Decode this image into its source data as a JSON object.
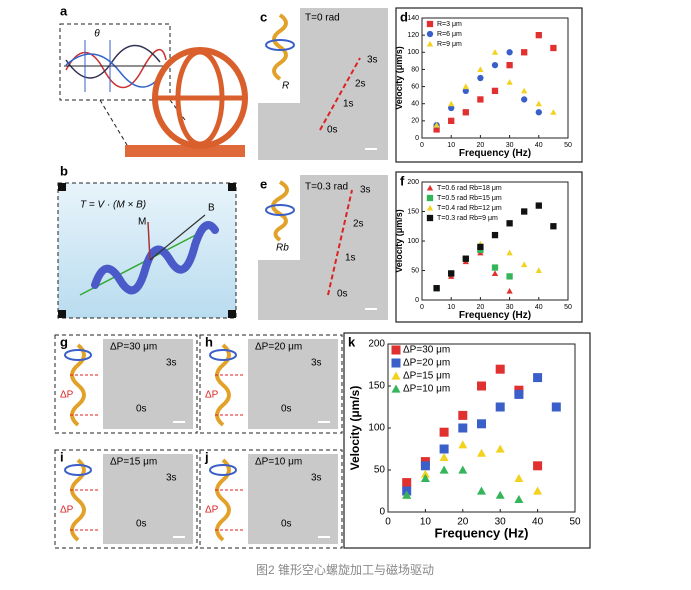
{
  "figure": {
    "panels": [
      {
        "label": "a",
        "texts": [
          "θ"
        ]
      },
      {
        "label": "b",
        "texts": [
          "T = V · (M × B)",
          "M",
          "B"
        ]
      },
      {
        "label": "c",
        "texts": [
          "T=0 rad",
          "3s",
          "2s",
          "1s",
          "0s",
          "R"
        ]
      },
      {
        "label": "d",
        "texts": []
      },
      {
        "label": "e",
        "texts": [
          "T=0.3 rad",
          "3s",
          "2s",
          "1s",
          "0s",
          "Rb"
        ]
      },
      {
        "label": "f",
        "texts": []
      },
      {
        "label": "g",
        "texts": [
          "ΔP=30 μm",
          "3s",
          "0s",
          "ΔP"
        ]
      },
      {
        "label": "h",
        "texts": [
          "ΔP=20 μm",
          "3s",
          "0s",
          "ΔP"
        ]
      },
      {
        "label": "i",
        "texts": [
          "ΔP=15 μm",
          "3s",
          "0s",
          "ΔP"
        ]
      },
      {
        "label": "j",
        "texts": [
          "ΔP=10 μm",
          "3s",
          "0s",
          "ΔP"
        ]
      },
      {
        "label": "k",
        "texts": []
      }
    ],
    "caption": "图2 锥形空心螺旋加工与磁场驱动"
  },
  "chart_data": [
    {
      "type": "scatter",
      "x_label": "Frequency (Hz)",
      "y_label": "Velocity (μm/s)",
      "xlim": [
        0,
        50
      ],
      "ylim": [
        0,
        140
      ],
      "xticks": [
        0,
        10,
        20,
        30,
        40,
        50
      ],
      "yticks": [
        0,
        20,
        40,
        60,
        80,
        100,
        120,
        140
      ],
      "series": [
        {
          "name": "R=3 μm",
          "color": "#e03030",
          "marker": "square",
          "x": [
            5,
            10,
            15,
            20,
            25,
            30,
            35,
            40,
            45
          ],
          "values": [
            10,
            20,
            30,
            45,
            55,
            85,
            100,
            120,
            105
          ]
        },
        {
          "name": "R=6 μm",
          "color": "#3a5fc8",
          "marker": "circle",
          "x": [
            5,
            10,
            15,
            20,
            25,
            30,
            35,
            40
          ],
          "values": [
            15,
            35,
            55,
            70,
            85,
            100,
            45,
            30
          ]
        },
        {
          "name": "R=9 μm",
          "color": "#f2d21e",
          "marker": "triangle",
          "x": [
            5,
            10,
            15,
            20,
            25,
            30,
            35,
            40,
            45
          ],
          "values": [
            15,
            40,
            60,
            80,
            100,
            65,
            55,
            40,
            30
          ]
        }
      ]
    },
    {
      "type": "scatter",
      "x_label": "Frequency (Hz)",
      "y_label": "Velocity (μm/s)",
      "xlim": [
        0,
        50
      ],
      "ylim": [
        0,
        200
      ],
      "xticks": [
        0,
        10,
        20,
        30,
        40,
        50
      ],
      "yticks": [
        0,
        50,
        100,
        150,
        200
      ],
      "series": [
        {
          "name": "T=0.6 rad Rb=18 μm",
          "color": "#e03030",
          "marker": "triangle",
          "x": [
            5,
            10,
            15,
            20,
            25,
            30
          ],
          "values": [
            20,
            40,
            65,
            80,
            45,
            15
          ]
        },
        {
          "name": "T=0.5 rad Rb=15 μm",
          "color": "#35b55a",
          "marker": "square",
          "x": [
            5,
            10,
            15,
            20,
            25,
            30
          ],
          "values": [
            20,
            45,
            70,
            85,
            55,
            40
          ]
        },
        {
          "name": "T=0.4 rad Rb=12 μm",
          "color": "#f2d21e",
          "marker": "triangle",
          "x": [
            5,
            10,
            15,
            20,
            25,
            30,
            35,
            40
          ],
          "values": [
            20,
            45,
            70,
            95,
            110,
            80,
            60,
            50
          ]
        },
        {
          "name": "T=0.3 rad Rb=9 μm",
          "color": "#111111",
          "marker": "square",
          "x": [
            5,
            10,
            15,
            20,
            25,
            30,
            35,
            40,
            45
          ],
          "values": [
            20,
            45,
            70,
            90,
            110,
            130,
            150,
            160,
            125
          ]
        }
      ]
    },
    {
      "type": "scatter",
      "x_label": "Frequency (Hz)",
      "y_label": "Velocity (μm/s)",
      "xlim": [
        0,
        50
      ],
      "ylim": [
        0,
        200
      ],
      "xticks": [
        0,
        10,
        20,
        30,
        40,
        50
      ],
      "yticks": [
        0,
        50,
        100,
        150,
        200
      ],
      "series": [
        {
          "name": "ΔP=30 μm",
          "color": "#e03030",
          "marker": "square",
          "x": [
            5,
            10,
            15,
            20,
            25,
            30,
            35,
            40
          ],
          "values": [
            35,
            60,
            95,
            115,
            150,
            170,
            145,
            55
          ]
        },
        {
          "name": "ΔP=20 μm",
          "color": "#3a5fc8",
          "marker": "square",
          "x": [
            5,
            10,
            15,
            20,
            25,
            30,
            35,
            40,
            45
          ],
          "values": [
            25,
            55,
            75,
            100,
            105,
            125,
            140,
            160,
            125
          ]
        },
        {
          "name": "ΔP=15 μm",
          "color": "#f2d21e",
          "marker": "triangle",
          "x": [
            5,
            10,
            15,
            20,
            25,
            30,
            35,
            40
          ],
          "values": [
            20,
            45,
            65,
            80,
            70,
            75,
            40,
            25
          ]
        },
        {
          "name": "ΔP=10 μm",
          "color": "#35b55a",
          "marker": "triangle",
          "x": [
            5,
            10,
            15,
            20,
            25,
            30,
            35
          ],
          "values": [
            20,
            40,
            50,
            50,
            25,
            20,
            15
          ]
        }
      ]
    }
  ]
}
